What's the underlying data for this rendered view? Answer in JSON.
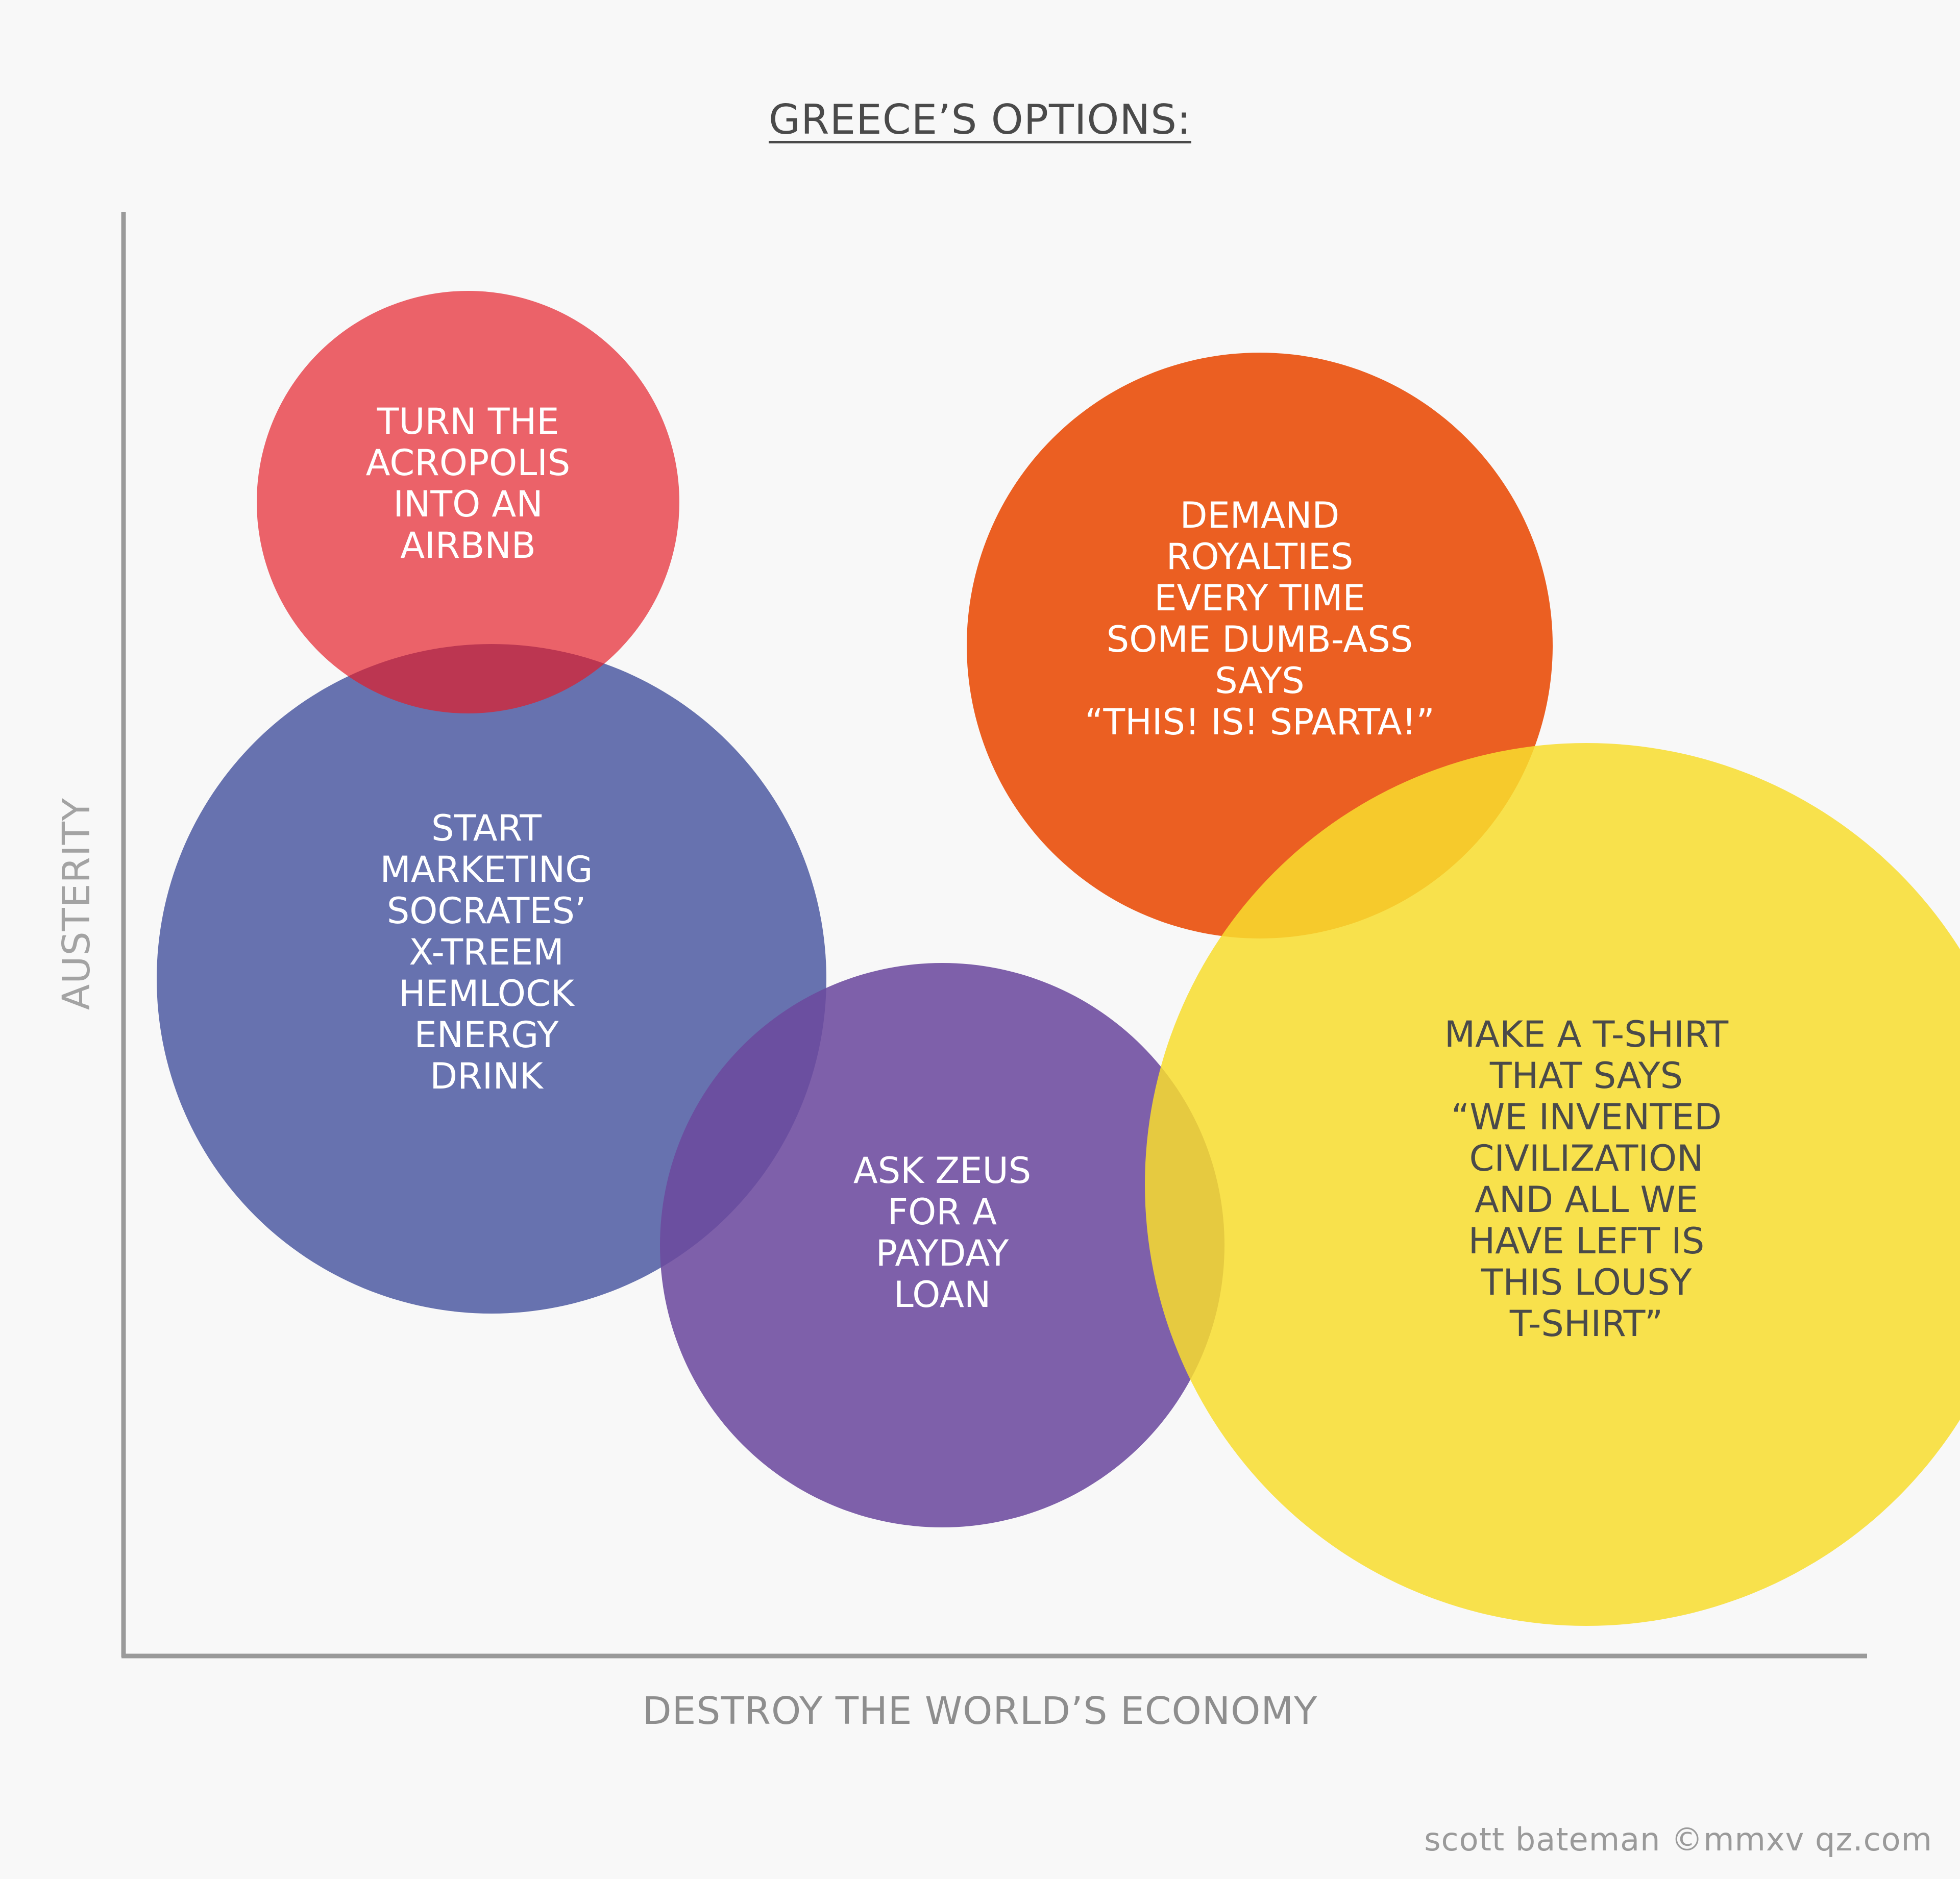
{
  "title": "GREECE’S OPTIONS:",
  "y_axis_label": "AUSTERITY",
  "x_axis_label": "DESTROY THE WORLD’S ECONOMY",
  "credit": "scott bateman ©mmxv qz.com",
  "colors": {
    "background": "#f8f8f8",
    "axis": "#9a9a9a",
    "acropolis": "#e41b25",
    "socrates": "#5a66a8",
    "zeus": "#6c4a9e",
    "royalties": "#ea5a1b",
    "tshirt": "#f8dd2e",
    "light_text": "#ffffff",
    "dark_text": "#4a4a4a"
  },
  "bubbles": [
    {
      "id": "socrates",
      "text": "START\nMARKETING\nSOCRATES’\nX-TREEM\nHEMLOCK\nENERGY\nDRINK"
    },
    {
      "id": "acropolis",
      "text": "TURN THE\nACROPOLIS\nINTO AN\nAIRBNB"
    },
    {
      "id": "zeus",
      "text": "ASK ZEUS\nFOR A\nPAYDAY\nLOAN"
    },
    {
      "id": "royalties",
      "text": "DEMAND\nROYALTIES\nEVERY TIME\nSOME DUMB-ASS\nSAYS\n“THIS! IS! SPARTA!”"
    },
    {
      "id": "tshirt",
      "text": "MAKE A T-SHIRT\nTHAT SAYS\n“WE INVENTED\nCIVILIZATION\nAND ALL WE\nHAVE LEFT IS\nTHIS LOUSY\nT-SHIRT”"
    }
  ]
}
